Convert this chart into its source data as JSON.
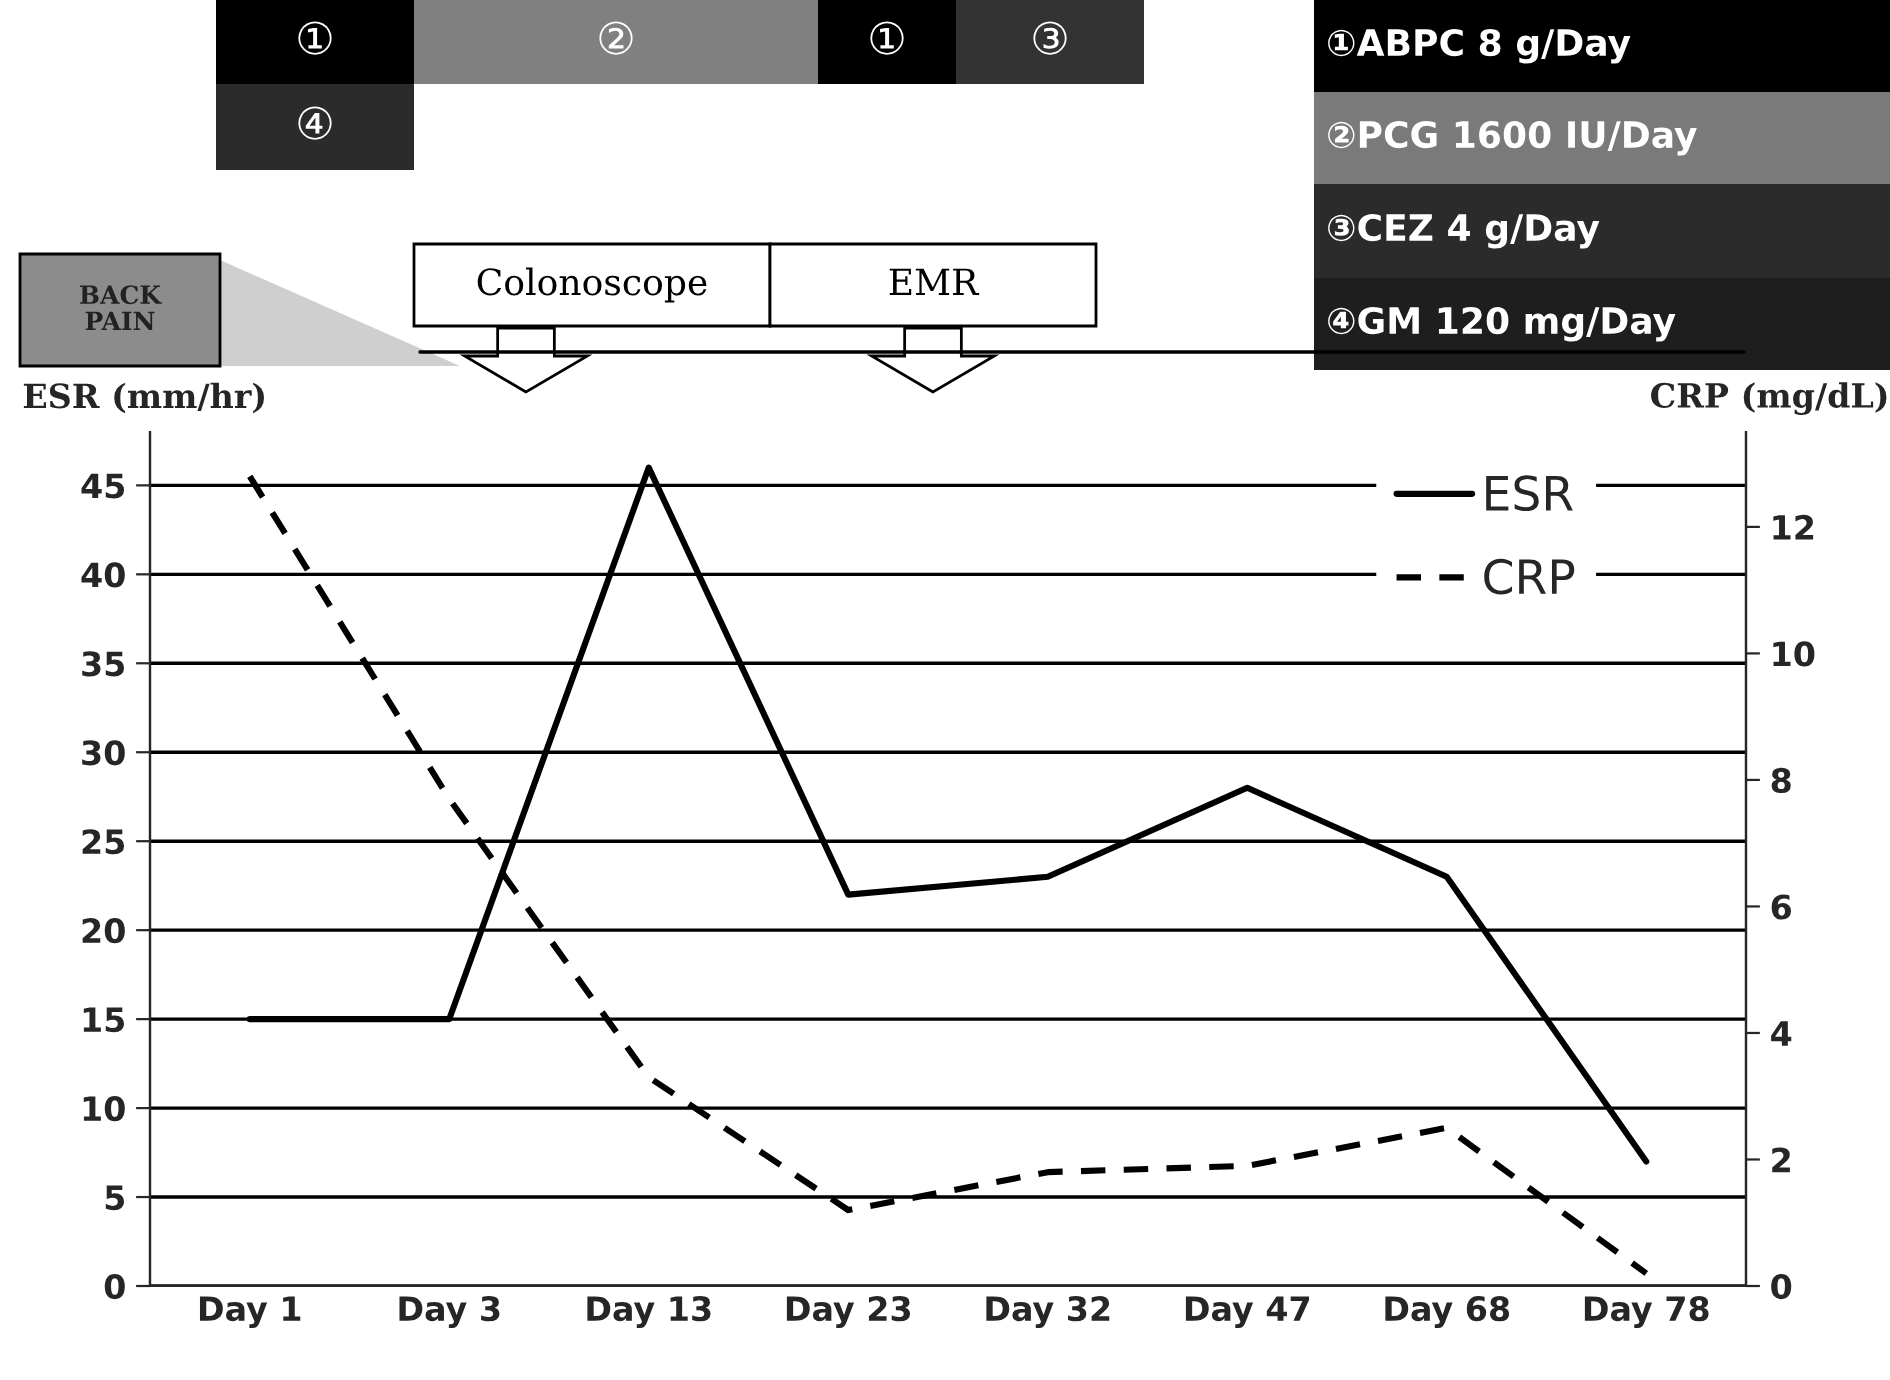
{
  "chart_data": {
    "type": "line",
    "ylabel": "ESR (mm/hr)",
    "y2label": "CRP (mg/dL)",
    "categories": [
      "Day 1",
      "Day 3",
      "Day 13",
      "Day 23",
      "Day 32",
      "Day 47",
      "Day 68",
      "Day 78"
    ],
    "series": [
      {
        "name": "ESR",
        "color": "#000000",
        "line_style": "solid",
        "values": [
          15,
          15,
          46,
          22,
          23,
          28,
          23,
          7
        ]
      },
      {
        "name": "CRP",
        "color": "#000000",
        "line_style": "dashed",
        "axis": "y2",
        "values": [
          12.8,
          7.7,
          3.3,
          1.2,
          1.8,
          1.9,
          2.5,
          0.2
        ]
      }
    ],
    "ylim": [
      0,
      48
    ],
    "yticks": [
      0,
      5,
      10,
      15,
      20,
      25,
      30,
      35,
      40,
      45
    ],
    "y2lim": [
      0,
      13.5
    ],
    "y2ticks": [
      0,
      2,
      4,
      6,
      8,
      10,
      12
    ],
    "grid": "y",
    "legend": "top right",
    "marker": "none",
    "annotations": [
      "①",
      "②",
      "①",
      "③",
      "④",
      "①ABPC 8 g/Day",
      "②PCG 1600 IU/Day",
      "③CEZ 4 g/Day",
      "④GM 120 mg/Day",
      "BACK PAIN",
      "Colonoscope",
      "EMR"
    ]
  }
}
